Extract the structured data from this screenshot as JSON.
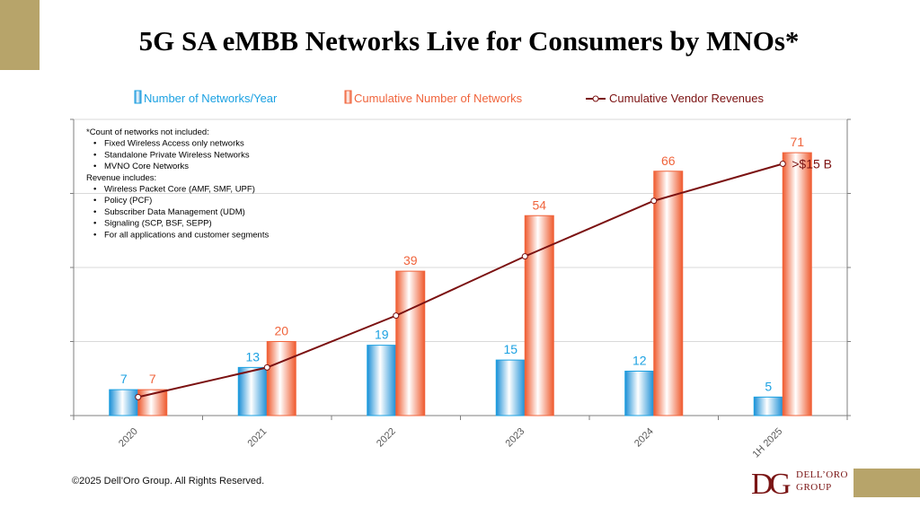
{
  "page": {
    "title": "5G SA eMBB Networks Live for Consumers by MNOs*",
    "copyright": "©2025 Dell’Oro Group. All Rights Reserved.",
    "logo": {
      "line1": "DELL’ORO",
      "line2": "GROUP"
    }
  },
  "colors": {
    "accent": "#b7a46a",
    "blue": "#1ba1e2",
    "orange": "#f0643c",
    "revenue_line": "#7b1111",
    "grid": "#d9d9d9",
    "axis": "#7f7f7f"
  },
  "chart_data": {
    "type": "bar",
    "title": "",
    "categories": [
      "2020",
      "2021",
      "2022",
      "2023",
      "2024",
      "1H 2025"
    ],
    "ylim": [
      0,
      80
    ],
    "grid": true,
    "legend_position": "top",
    "series": [
      {
        "name": "Number of Networks/Year",
        "type": "bar",
        "color": "#1ba1e2",
        "values": [
          7,
          13,
          19,
          15,
          12,
          5
        ],
        "labels": [
          "7",
          "13",
          "19",
          "15",
          "12",
          "5"
        ]
      },
      {
        "name": "Cumulative Number of Networks",
        "type": "bar",
        "color": "#f0643c",
        "values": [
          7,
          20,
          39,
          54,
          66,
          71
        ],
        "labels": [
          "7",
          "20",
          "39",
          "54",
          "66",
          "71"
        ]
      },
      {
        "name": "Cumulative Vendor Revenues",
        "type": "line",
        "color": "#7b1111",
        "values": [
          5,
          13,
          27,
          43,
          58,
          68
        ],
        "end_label": ">$15 B"
      }
    ],
    "notes": [
      {
        "text": "*Count of networks not included:",
        "bullet": false
      },
      {
        "text": "Fixed Wireless Access only networks",
        "bullet": true
      },
      {
        "text": "Standalone Private Wireless Networks",
        "bullet": true
      },
      {
        "text": "MVNO Core Networks",
        "bullet": true
      },
      {
        "text": "Revenue includes:",
        "bullet": false
      },
      {
        "text": "Wireless Packet Core (AMF, SMF, UPF)",
        "bullet": true
      },
      {
        "text": "Policy (PCF)",
        "bullet": true
      },
      {
        "text": "Subscriber Data Management (UDM)",
        "bullet": true
      },
      {
        "text": "Signaling (SCP, BSF, SEPP)",
        "bullet": true
      },
      {
        "text": "For all applications and customer segments",
        "bullet": true
      }
    ]
  }
}
